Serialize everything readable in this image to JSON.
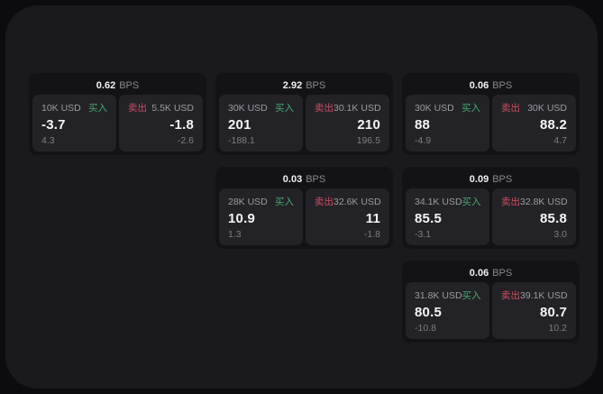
{
  "labels": {
    "bps_unit": "BPS",
    "buy": "买入",
    "sell": "卖出"
  },
  "colors": {
    "page_background": "#0c0c0e",
    "surface_background": "#1a1a1c",
    "card_background": "#131316",
    "panel_background": "#232327",
    "buy_green": "#45a871",
    "sell_red": "#cb4e63",
    "value_white": "#f4f5f6",
    "muted_gray": "#8a8a8e"
  },
  "cards": [
    {
      "col": 1,
      "row": 1,
      "bps": "0.62",
      "buy": {
        "amount": "10K USD",
        "value": "-3.7",
        "sub": "4.3"
      },
      "sell": {
        "amount": "5.5K USD",
        "value": "-1.8",
        "sub": "-2.6"
      }
    },
    {
      "col": 2,
      "row": 1,
      "bps": "2.92",
      "buy": {
        "amount": "30K USD",
        "value": "201",
        "sub": "-188.1"
      },
      "sell": {
        "amount": "30.1K USD",
        "value": "210",
        "sub": "196.5"
      }
    },
    {
      "col": 3,
      "row": 1,
      "bps": "0.06",
      "buy": {
        "amount": "30K USD",
        "value": "88",
        "sub": "-4.9"
      },
      "sell": {
        "amount": "30K USD",
        "value": "88.2",
        "sub": "4.7"
      }
    },
    {
      "col": 2,
      "row": 2,
      "bps": "0.03",
      "buy": {
        "amount": "28K USD",
        "value": "10.9",
        "sub": "1.3"
      },
      "sell": {
        "amount": "32.6K USD",
        "value": "11",
        "sub": "-1.8"
      }
    },
    {
      "col": 3,
      "row": 2,
      "bps": "0.09",
      "buy": {
        "amount": "34.1K USD",
        "value": "85.5",
        "sub": "-3.1"
      },
      "sell": {
        "amount": "32.8K USD",
        "value": "85.8",
        "sub": "3.0"
      }
    },
    {
      "col": 3,
      "row": 3,
      "bps": "0.06",
      "buy": {
        "amount": "31.8K USD",
        "value": "80.5",
        "sub": "-10.8"
      },
      "sell": {
        "amount": "39.1K USD",
        "value": "80.7",
        "sub": "10.2"
      }
    }
  ]
}
